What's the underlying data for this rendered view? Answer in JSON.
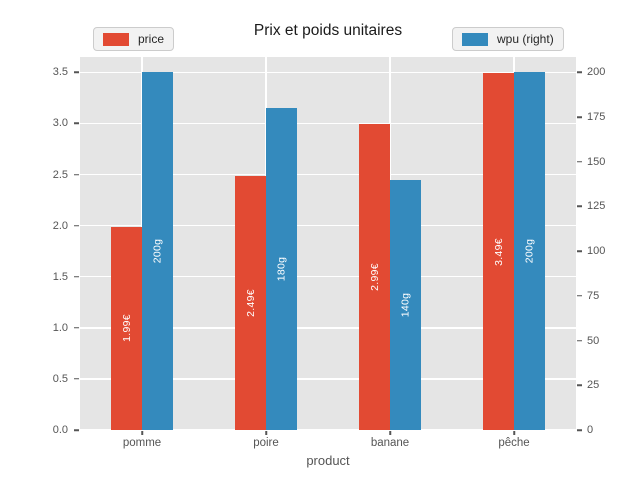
{
  "figure": {
    "title": "Prix et poids unitaires"
  },
  "legends": [
    {
      "label": "price",
      "color": "#E24A33"
    },
    {
      "label": "wpu (right)",
      "color": "#348ABD"
    }
  ],
  "chart_data": {
    "type": "bar",
    "title": "Prix et poids unitaires",
    "xlabel": "product",
    "categories": [
      "pomme",
      "poire",
      "banane",
      "pêche"
    ],
    "series": [
      {
        "name": "price",
        "axis": "left",
        "color": "#E24A33",
        "values": [
          1.99,
          2.49,
          2.99,
          3.49
        ],
        "bar_labels": [
          "1.99€",
          "2.49€",
          "2.99€",
          "3.49€"
        ]
      },
      {
        "name": "wpu (right)",
        "axis": "right",
        "color": "#348ABD",
        "values": [
          200,
          180,
          140,
          200
        ],
        "bar_labels": [
          "200g",
          "180g",
          "140g",
          "200g"
        ]
      }
    ],
    "left_axis": {
      "tick_values": [
        0.0,
        0.5,
        1.0,
        1.5,
        2.0,
        2.5,
        3.0,
        3.5
      ],
      "tick_labels": [
        "0.0",
        "0.5",
        "1.0",
        "1.5",
        "2.0",
        "2.5",
        "3.0",
        "3.5"
      ],
      "range": [
        0,
        3.65
      ]
    },
    "right_axis": {
      "tick_values": [
        0,
        25,
        50,
        75,
        100,
        125,
        150,
        175,
        200
      ],
      "tick_labels": [
        "0",
        "25",
        "50",
        "75",
        "100",
        "125",
        "150",
        "175",
        "200"
      ],
      "range": [
        0,
        208.6
      ]
    },
    "grid": true,
    "legend_position": "top",
    "plot_bg": "#E5E5E5",
    "grid_color": "#FFFFFF",
    "tick_color": "#555555"
  }
}
